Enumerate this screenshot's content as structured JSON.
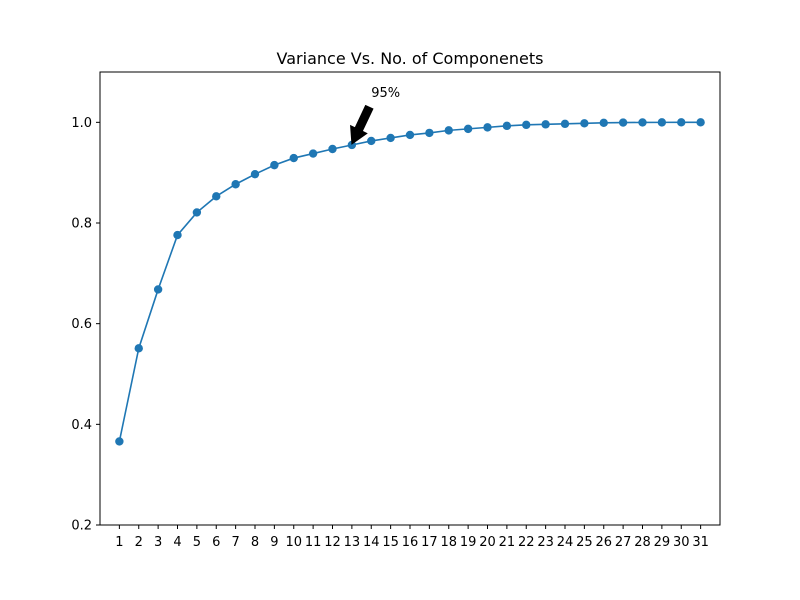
{
  "chart_data": {
    "type": "line",
    "title": "Variance Vs. No. of Componenets",
    "xlabel": "",
    "ylabel": "",
    "x": [
      1,
      2,
      3,
      4,
      5,
      6,
      7,
      8,
      9,
      10,
      11,
      12,
      13,
      14,
      15,
      16,
      17,
      18,
      19,
      20,
      21,
      22,
      23,
      24,
      25,
      26,
      27,
      28,
      29,
      30,
      31
    ],
    "xticks": [
      "1",
      "2",
      "3",
      "4",
      "5",
      "6",
      "7",
      "8",
      "9",
      "10",
      "11",
      "12",
      "13",
      "14",
      "15",
      "16",
      "17",
      "18",
      "19",
      "20",
      "21",
      "22",
      "23",
      "24",
      "25",
      "26",
      "27",
      "28",
      "29",
      "30",
      "31"
    ],
    "series": [
      {
        "color": "#1f77b4",
        "values": [
          0.366,
          0.551,
          0.668,
          0.776,
          0.821,
          0.853,
          0.877,
          0.897,
          0.915,
          0.929,
          0.938,
          0.947,
          0.955,
          0.963,
          0.969,
          0.975,
          0.979,
          0.984,
          0.987,
          0.99,
          0.993,
          0.995,
          0.996,
          0.997,
          0.998,
          0.999,
          0.9995,
          0.9998,
          0.9999,
          1.0,
          1.0
        ]
      }
    ],
    "ylim": [
      0.2,
      1.1
    ],
    "yticks": [
      "0.2",
      "0.4",
      "0.6",
      "0.8",
      "1.0"
    ],
    "xlim": [
      0,
      32
    ],
    "grid": false,
    "annotation": {
      "text": "95%",
      "x": 13,
      "y": 0.955,
      "text_x": 14,
      "text_y": 1.05
    }
  }
}
